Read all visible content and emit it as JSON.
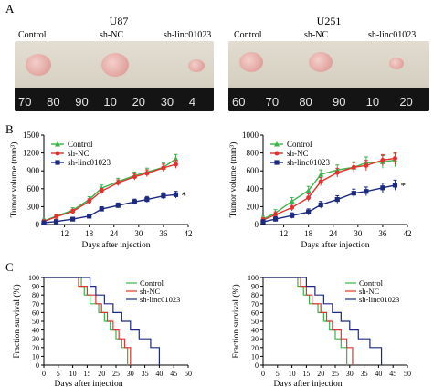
{
  "panels": {
    "A": "A",
    "B": "B",
    "C": "C"
  },
  "photos": [
    {
      "title": "U87",
      "labels": [
        "Control",
        "sh-NC",
        "sh-linc01023"
      ],
      "ruler": [
        "70",
        "80",
        "90",
        "10",
        "20",
        "30",
        "4"
      ],
      "tissue_color": "#f1c6c1"
    },
    {
      "title": "U251",
      "labels": [
        "Control",
        "sh-NC",
        "sh-linc01023"
      ],
      "ruler": [
        "60",
        "70",
        "80",
        "90",
        "10",
        "20"
      ],
      "tissue_color": "#f1c6c1"
    }
  ],
  "colors": {
    "control": "#39b54a",
    "sh_nc": "#e8312f",
    "sh_linc": "#1c2a80"
  },
  "chart_data": [
    {
      "type": "line",
      "ylabel": "Tumor volume (mm³)",
      "xlabel": "Days after injection",
      "xticks": [
        12,
        18,
        24,
        30,
        36,
        42
      ],
      "yticks": [
        0,
        300,
        600,
        900,
        1200,
        1500
      ],
      "xlim": [
        7,
        42
      ],
      "ylim": [
        0,
        1500
      ],
      "x": [
        7,
        10,
        14,
        18,
        21,
        25,
        29,
        32,
        36,
        39
      ],
      "series": [
        {
          "name": "Control",
          "values": [
            60,
            140,
            240,
            420,
            610,
            720,
            820,
            880,
            960,
            1100
          ],
          "err": 80
        },
        {
          "name": "sh-NC",
          "values": [
            50,
            130,
            220,
            390,
            560,
            700,
            800,
            860,
            950,
            1010
          ],
          "err": 70
        },
        {
          "name": "sh-linc01023",
          "values": [
            30,
            50,
            90,
            140,
            260,
            320,
            380,
            420,
            480,
            500
          ],
          "err": 60
        }
      ],
      "annotation": "*",
      "legend": "top-left"
    },
    {
      "type": "line",
      "ylabel": "Tumor volume (mm³)",
      "xlabel": "Days after injection",
      "xticks": [
        12,
        18,
        24,
        30,
        36,
        42
      ],
      "yticks": [
        0,
        200,
        400,
        600,
        800,
        1000
      ],
      "xlim": [
        7,
        42
      ],
      "ylim": [
        0,
        1000
      ],
      "x": [
        7,
        10,
        14,
        18,
        21,
        25,
        29,
        32,
        36,
        39
      ],
      "series": [
        {
          "name": "Control",
          "values": [
            60,
            130,
            260,
            380,
            560,
            610,
            640,
            690,
            700,
            720
          ],
          "err": 80
        },
        {
          "name": "sh-NC",
          "values": [
            50,
            110,
            190,
            300,
            480,
            580,
            640,
            660,
            720,
            740
          ],
          "err": 70
        },
        {
          "name": "sh-linc01023",
          "values": [
            30,
            60,
            100,
            140,
            220,
            280,
            350,
            370,
            410,
            440
          ],
          "err": 60
        }
      ],
      "annotation": "*",
      "legend": "top-left"
    },
    {
      "type": "line",
      "ylabel": "Fraction survival (%)",
      "xlabel": "Days after injection",
      "xticks": [
        0,
        5,
        10,
        15,
        20,
        25,
        30,
        35,
        40,
        45,
        50
      ],
      "yticks": [
        0,
        10,
        20,
        30,
        40,
        50,
        60,
        70,
        80,
        90,
        100
      ],
      "xlim": [
        0,
        50
      ],
      "ylim": [
        0,
        100
      ],
      "series": [
        {
          "name": "Control",
          "x": [
            0,
            13,
            14,
            16,
            19,
            21,
            23,
            25,
            27,
            29
          ],
          "values": [
            100,
            90,
            80,
            70,
            60,
            50,
            40,
            30,
            20,
            0
          ]
        },
        {
          "name": "sh-NC",
          "x": [
            0,
            12,
            15,
            18,
            20,
            22,
            24,
            26,
            28,
            30
          ],
          "values": [
            100,
            90,
            80,
            70,
            60,
            50,
            40,
            30,
            20,
            0
          ]
        },
        {
          "name": "sh-linc01023",
          "x": [
            0,
            16,
            18,
            21,
            24,
            27,
            30,
            33,
            37,
            40
          ],
          "values": [
            100,
            90,
            80,
            70,
            60,
            50,
            40,
            30,
            20,
            0
          ]
        }
      ],
      "legend": "top-right"
    },
    {
      "type": "line",
      "ylabel": "Fraction survival (%)",
      "xlabel": "Days after injection",
      "xticks": [
        0,
        5,
        10,
        15,
        20,
        25,
        30,
        35,
        40,
        45,
        50
      ],
      "yticks": [
        0,
        10,
        20,
        30,
        40,
        50,
        60,
        70,
        80,
        90,
        100
      ],
      "xlim": [
        0,
        50
      ],
      "ylim": [
        0,
        100
      ],
      "series": [
        {
          "name": "Control",
          "x": [
            0,
            12,
            14,
            16,
            19,
            21,
            23,
            25,
            27,
            29
          ],
          "values": [
            100,
            90,
            80,
            70,
            60,
            50,
            40,
            30,
            20,
            0
          ]
        },
        {
          "name": "sh-NC",
          "x": [
            0,
            13,
            15,
            17,
            20,
            22,
            24,
            27,
            29,
            31
          ],
          "values": [
            100,
            90,
            80,
            70,
            60,
            50,
            40,
            30,
            20,
            0
          ]
        },
        {
          "name": "sh-linc01023",
          "x": [
            0,
            15,
            18,
            21,
            24,
            27,
            30,
            33,
            37,
            41
          ],
          "values": [
            100,
            90,
            80,
            70,
            60,
            50,
            40,
            30,
            20,
            0
          ]
        }
      ],
      "legend": "top-right"
    }
  ]
}
